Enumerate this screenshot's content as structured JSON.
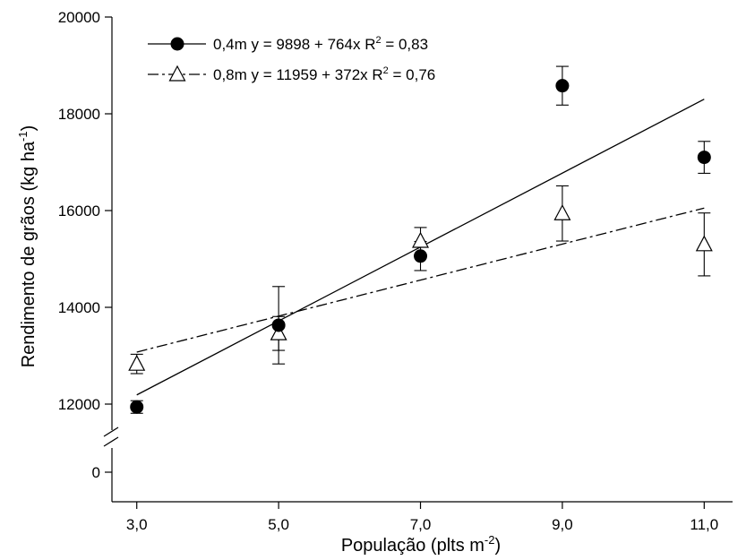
{
  "chart_data": {
    "type": "scatter",
    "x_ticks": [
      "3,0",
      "5,0",
      "7,0",
      "9,0",
      "11,0"
    ],
    "x_values": [
      3,
      5,
      7,
      9,
      11
    ],
    "xlim": [
      2.65,
      11.4
    ],
    "y_ticks": [
      {
        "value": 12000,
        "label": "12000"
      },
      {
        "value": 14000,
        "label": "14000"
      },
      {
        "value": 16000,
        "label": "16000"
      },
      {
        "value": 18000,
        "label": "18000"
      },
      {
        "value": 20000,
        "label": "20000"
      }
    ],
    "y_zero_label": "0",
    "ylim": [
      11400,
      20000
    ],
    "axis_break": true,
    "xlabel": {
      "text": "População (plts m",
      "sup": "-2",
      "after": ")"
    },
    "ylabel": {
      "text": "Rendimento de grãos (kg ha",
      "sup": "-1",
      "after": ")"
    },
    "legend_position": "top-left",
    "grid": false,
    "series": [
      {
        "name": "0,4m",
        "equation": "y = 9898 + 764x",
        "r2_prefix": "R",
        "r2_sup": "2",
        "r2_value": " = 0,83",
        "marker": "filled-circle",
        "line_style": "solid",
        "intercept": 9898,
        "slope": 764,
        "x": [
          3,
          5,
          7,
          9,
          11
        ],
        "y": [
          11940,
          13630,
          15060,
          18580,
          17100
        ],
        "err": [
          130,
          800,
          300,
          400,
          330
        ]
      },
      {
        "name": "0,8m",
        "equation": "y = 11959 + 372x",
        "r2_prefix": "R",
        "r2_sup": "2",
        "r2_value": " = 0,76",
        "marker": "open-triangle",
        "line_style": "dashed",
        "intercept": 11959,
        "slope": 372,
        "x": [
          3,
          5,
          7,
          9,
          11
        ],
        "y": [
          12830,
          13460,
          15370,
          15940,
          15300
        ],
        "err": [
          200,
          350,
          280,
          570,
          650
        ]
      }
    ]
  }
}
